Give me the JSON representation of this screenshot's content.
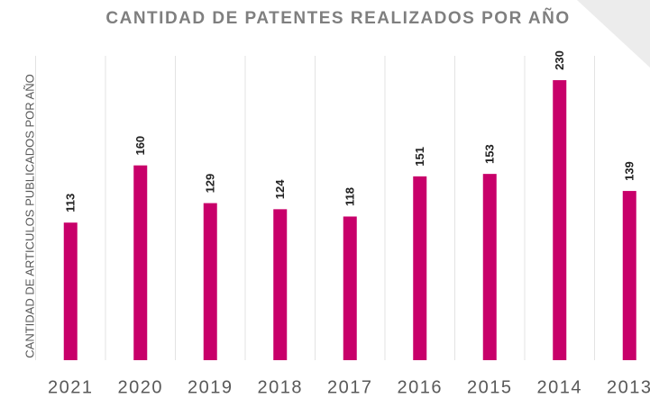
{
  "chart_data": {
    "type": "bar",
    "title": "CANTIDAD DE PATENTES REALIZADOS POR AÑO",
    "y_label": "CANTIDAD DE ARTICULOS PUBLICADOS POR AÑO",
    "categories": [
      "2021",
      "2020",
      "2019",
      "2018",
      "2017",
      "2016",
      "2015",
      "2014",
      "2013"
    ],
    "values": [
      113,
      160,
      129,
      124,
      118,
      151,
      153,
      230,
      139
    ],
    "color": "#c8006a",
    "ylim": [
      0,
      250
    ],
    "grid": true
  }
}
